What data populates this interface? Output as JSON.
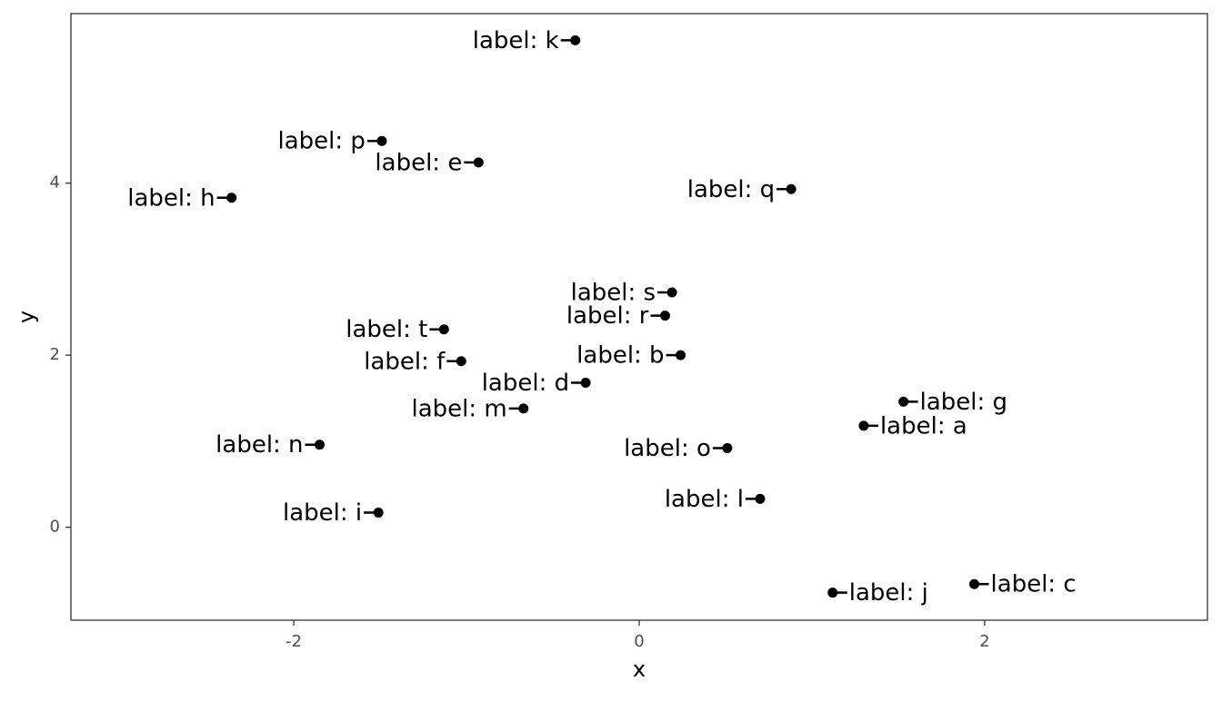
{
  "chart_data": {
    "type": "scatter",
    "x_label": "x",
    "y_label": "y",
    "labels": [
      "label: a",
      "label: b",
      "label: c",
      "label: d",
      "label: e",
      "label: f",
      "label: g",
      "label: h",
      "label: i",
      "label: j",
      "label: k",
      "label: l",
      "label: m",
      "label: n",
      "label: o",
      "label: p",
      "label: q",
      "label: r",
      "label: s",
      "label: t"
    ],
    "x": [
      1.3,
      0.24,
      1.94,
      -0.31,
      -0.93,
      -1.03,
      1.53,
      -2.36,
      -1.51,
      1.12,
      -0.37,
      0.7,
      -0.67,
      -1.85,
      0.51,
      -1.49,
      0.88,
      0.15,
      0.19,
      -1.13
    ],
    "values": [
      1.18,
      2.0,
      -0.66,
      1.68,
      4.24,
      1.93,
      1.46,
      3.83,
      0.17,
      -0.76,
      5.66,
      0.33,
      1.38,
      0.96,
      0.92,
      4.49,
      3.93,
      2.46,
      2.73,
      2.3
    ],
    "color": "#000000",
    "xlim": [
      -3.29,
      3.29
    ],
    "ylim": [
      -1.08,
      5.97
    ],
    "xticks": [
      -2,
      0,
      2
    ],
    "yticks": [
      0,
      2,
      4
    ],
    "grid": false
  }
}
